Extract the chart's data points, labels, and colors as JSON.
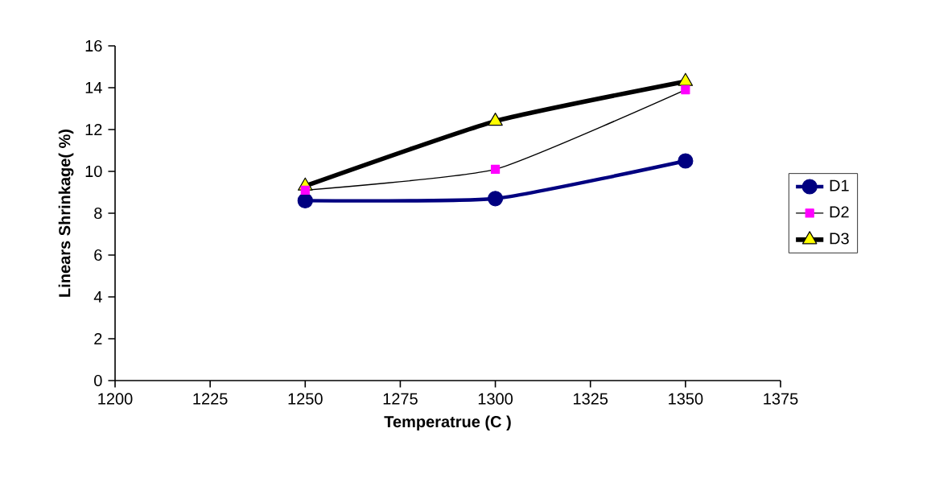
{
  "chart_data": {
    "type": "line",
    "xlabel": "Temperatrue (C )",
    "ylabel": "Linears Shrinkage( %)",
    "x": [
      1250,
      1300,
      1350
    ],
    "series": [
      {
        "name": "D1",
        "color": "#000080",
        "marker": "circle",
        "values": [
          8.6,
          8.7,
          10.5
        ]
      },
      {
        "name": "D2",
        "color": "#ff00ff",
        "marker": "square",
        "values": [
          9.1,
          10.1,
          13.9
        ]
      },
      {
        "name": "D3",
        "color": "#ffff00",
        "marker": "triangle",
        "values": [
          9.3,
          12.4,
          14.3
        ]
      }
    ],
    "xlim": [
      1200,
      1375
    ],
    "xticks": [
      1200,
      1225,
      1250,
      1275,
      1300,
      1325,
      1350,
      1375
    ],
    "ylim": [
      0,
      16
    ],
    "yticks": [
      0,
      2,
      4,
      6,
      8,
      10,
      12,
      14,
      16
    ],
    "grid": false,
    "legend": "right"
  }
}
